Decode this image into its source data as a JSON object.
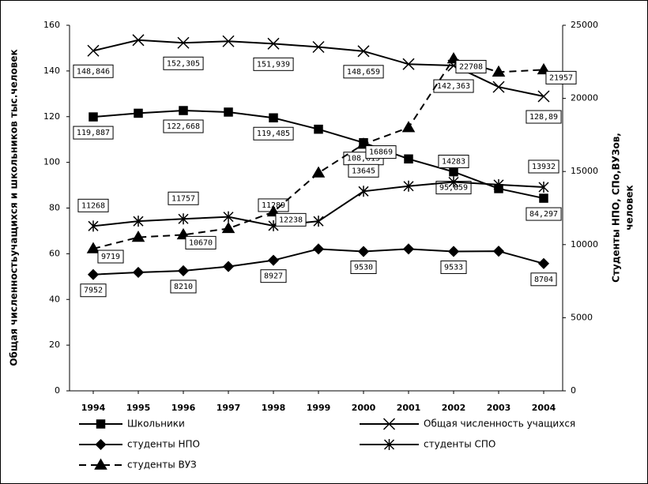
{
  "chart_data": {
    "type": "line",
    "ylabel": "Общая численностьучащихся и школьников тыс.человек",
    "y2label": [
      "Студенты НПО, СПо,ВУЗов,",
      "человек"
    ],
    "categories": [
      "1994",
      "1995",
      "1996",
      "1997",
      "1998",
      "1999",
      "2000",
      "2001",
      "2002",
      "2003",
      "2004"
    ],
    "ylim": [
      0,
      160
    ],
    "yticks": [
      0,
      20,
      40,
      60,
      80,
      100,
      120,
      140,
      160
    ],
    "y2lim": [
      0,
      25000
    ],
    "y2ticks": [
      0,
      5000,
      10000,
      15000,
      20000,
      25000
    ],
    "legend": "bottom",
    "series": [
      {
        "name": "Школьники",
        "color": "#000000",
        "marker": "square",
        "dash": false,
        "values": [
          119.887,
          121.5,
          122.668,
          122.0,
          119.485,
          114.5,
          108.615,
          101.5,
          95.859,
          88.5,
          84.297
        ],
        "value_labels": [
          "119,887",
          null,
          "122,668",
          null,
          "119,485",
          null,
          "108,615",
          null,
          "95,859",
          null,
          "84,297"
        ]
      },
      {
        "name": "Общая численность учащихся",
        "color": "#000000",
        "marker": "x",
        "dash": false,
        "values": [
          148.846,
          153.5,
          152.305,
          153.0,
          151.939,
          150.5,
          148.659,
          143.0,
          142.363,
          133.0,
          128.89
        ],
        "value_labels": [
          "148,846",
          null,
          "152,305",
          null,
          "151,939",
          null,
          "148,659",
          null,
          "142,363",
          null,
          "128,89"
        ]
      },
      {
        "name": "студенты НПО",
        "color": "#000000",
        "marker": "diamond",
        "dash": false,
        "axis": "y2",
        "values": [
          7952,
          8100,
          8210,
          8500,
          8927,
          9700,
          9530,
          9700,
          9533,
          9550,
          8704
        ],
        "value_labels": [
          "7952",
          null,
          "8210",
          null,
          "8927",
          null,
          "9530",
          null,
          "9533",
          null,
          "8704"
        ]
      },
      {
        "name": "студенты СПО",
        "color": "#000000",
        "marker": "star",
        "dash": false,
        "axis": "y2",
        "values": [
          11268,
          11600,
          11757,
          11900,
          11289,
          11600,
          13645,
          14000,
          14283,
          14100,
          13932
        ],
        "value_labels": [
          "11268",
          null,
          "11757",
          null,
          "11289",
          null,
          "13645",
          null,
          "14283",
          null,
          "13932"
        ]
      },
      {
        "name": "студенты ВУЗ",
        "color": "#000000",
        "marker": "triangle",
        "dash": true,
        "axis": "y2",
        "values": [
          9719,
          10500,
          10670,
          11100,
          12238,
          14900,
          16869,
          18000,
          22708,
          21800,
          21957
        ],
        "value_labels": [
          "9719",
          null,
          "10670",
          null,
          "12238",
          null,
          "16869",
          null,
          "22708",
          null,
          "21957"
        ]
      }
    ]
  }
}
